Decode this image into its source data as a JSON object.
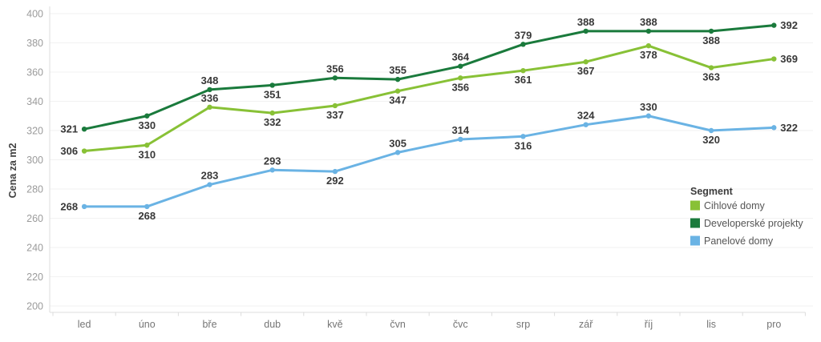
{
  "chart_data": {
    "type": "line",
    "title": "",
    "ylabel": "Cena za m2",
    "xlabel": "",
    "categories": [
      "led",
      "úno",
      "bře",
      "dub",
      "kvě",
      "čvn",
      "čvc",
      "srp",
      "zář",
      "říj",
      "lis",
      "pro"
    ],
    "series": [
      {
        "name": "Cihlové domy",
        "color": "#88c136",
        "values": [
          306,
          310,
          336,
          332,
          337,
          347,
          356,
          361,
          367,
          378,
          363,
          369
        ],
        "label_placement": [
          "left",
          "below",
          "above",
          "below",
          "below",
          "below",
          "below",
          "below",
          "below",
          "below",
          "below",
          "right"
        ]
      },
      {
        "name": "Developerské projekty",
        "color": "#1a7a3c",
        "values": [
          321,
          330,
          348,
          351,
          356,
          355,
          364,
          379,
          388,
          388,
          388,
          392
        ],
        "label_placement": [
          "left",
          "below",
          "above",
          "below",
          "above",
          "above",
          "above",
          "above",
          "above",
          "above",
          "below",
          "right"
        ]
      },
      {
        "name": "Panelové domy",
        "color": "#6ab3e4",
        "values": [
          268,
          268,
          283,
          293,
          292,
          305,
          314,
          316,
          324,
          330,
          320,
          322
        ],
        "label_placement": [
          "left",
          "below",
          "above",
          "above",
          "below",
          "above",
          "above",
          "below",
          "above",
          "above",
          "below",
          "right"
        ]
      }
    ],
    "y_axis": {
      "min": 200,
      "max": 400,
      "step": 20
    },
    "grid": "horizontal",
    "legend": {
      "title": "Segment",
      "position": "right-middle"
    },
    "colors": {
      "gridline": "#f2f2f2",
      "axis_line": "#dcdcdc",
      "y_tick_text": "#9b9b9b",
      "x_tick_text": "#757575",
      "data_label_text": "#383838"
    }
  }
}
